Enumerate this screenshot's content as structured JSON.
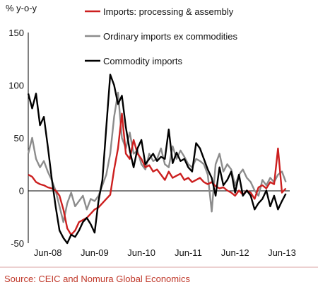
{
  "chart_data": {
    "type": "line",
    "ylabel": "% y-o-y",
    "ylim": [
      -50,
      150
    ],
    "y_ticks": [
      "150",
      "100",
      "50",
      "0",
      "-50"
    ],
    "x_ticks": [
      "Jun-08",
      "Jun-09",
      "Jun-10",
      "Jun-11",
      "Jun-12",
      "Jun-13"
    ],
    "x_start": "2008-01",
    "x_end": "2013-08",
    "grid": false,
    "legend_position": "top",
    "series": [
      {
        "name": "Imports: processing & assembly",
        "color": "#cc1f1f",
        "x": [
          "2008-01",
          "2008-02",
          "2008-03",
          "2008-04",
          "2008-05",
          "2008-06",
          "2008-07",
          "2008-08",
          "2008-09",
          "2008-10",
          "2008-11",
          "2008-12",
          "2009-01",
          "2009-02",
          "2009-03",
          "2009-04",
          "2009-05",
          "2009-06",
          "2009-07",
          "2009-08",
          "2009-09",
          "2009-10",
          "2009-11",
          "2009-12",
          "2010-01",
          "2010-02",
          "2010-03",
          "2010-04",
          "2010-05",
          "2010-06",
          "2010-07",
          "2010-08",
          "2010-09",
          "2010-10",
          "2010-11",
          "2010-12",
          "2011-01",
          "2011-02",
          "2011-03",
          "2011-04",
          "2011-05",
          "2011-06",
          "2011-07",
          "2011-08",
          "2011-09",
          "2011-10",
          "2011-11",
          "2011-12",
          "2012-01",
          "2012-02",
          "2012-03",
          "2012-04",
          "2012-05",
          "2012-06",
          "2012-07",
          "2012-08",
          "2012-09",
          "2012-10",
          "2012-11",
          "2012-12",
          "2013-01",
          "2013-02",
          "2013-03",
          "2013-04",
          "2013-05",
          "2013-06",
          "2013-07"
        ],
        "values": [
          15,
          13,
          8,
          6,
          5,
          3,
          2,
          0,
          -5,
          -18,
          -36,
          -42,
          -38,
          -30,
          -28,
          -26,
          -22,
          -18,
          -16,
          -12,
          -8,
          -4,
          20,
          40,
          73,
          35,
          30,
          48,
          35,
          30,
          22,
          24,
          18,
          20,
          15,
          10,
          18,
          12,
          14,
          16,
          10,
          12,
          8,
          10,
          12,
          8,
          6,
          8,
          4,
          2,
          3,
          0,
          -2,
          -5,
          0,
          -4,
          0,
          -2,
          -8,
          3,
          5,
          2,
          8,
          6,
          40,
          -2,
          2
        ]
      },
      {
        "name": "Ordinary imports ex commodities",
        "color": "#8c8c8c",
        "x": [
          "2008-01",
          "2008-02",
          "2008-03",
          "2008-04",
          "2008-05",
          "2008-06",
          "2008-07",
          "2008-08",
          "2008-09",
          "2008-10",
          "2008-11",
          "2008-12",
          "2009-01",
          "2009-02",
          "2009-03",
          "2009-04",
          "2009-05",
          "2009-06",
          "2009-07",
          "2009-08",
          "2009-09",
          "2009-10",
          "2009-11",
          "2009-12",
          "2010-01",
          "2010-02",
          "2010-03",
          "2010-04",
          "2010-05",
          "2010-06",
          "2010-07",
          "2010-08",
          "2010-09",
          "2010-10",
          "2010-11",
          "2010-12",
          "2011-01",
          "2011-02",
          "2011-03",
          "2011-04",
          "2011-05",
          "2011-06",
          "2011-07",
          "2011-08",
          "2011-09",
          "2011-10",
          "2011-11",
          "2011-12",
          "2012-01",
          "2012-02",
          "2012-03",
          "2012-04",
          "2012-05",
          "2012-06",
          "2012-07",
          "2012-08",
          "2012-09",
          "2012-10",
          "2012-11",
          "2012-12",
          "2013-01",
          "2013-02",
          "2013-03",
          "2013-04",
          "2013-05",
          "2013-06",
          "2013-07"
        ],
        "values": [
          35,
          50,
          30,
          22,
          28,
          18,
          10,
          0,
          -15,
          -30,
          -12,
          -2,
          -15,
          -10,
          -5,
          -18,
          -8,
          -10,
          -5,
          5,
          15,
          35,
          70,
          93,
          50,
          40,
          55,
          35,
          38,
          25,
          20,
          35,
          28,
          30,
          40,
          25,
          22,
          42,
          30,
          38,
          32,
          25,
          22,
          30,
          28,
          25,
          15,
          -20,
          25,
          35,
          18,
          25,
          20,
          5,
          15,
          20,
          12,
          8,
          0,
          -5,
          10,
          5,
          12,
          8,
          15,
          18,
          8
        ]
      },
      {
        "name": "Commodity imports",
        "color": "#000000",
        "x": [
          "2008-01",
          "2008-02",
          "2008-03",
          "2008-04",
          "2008-05",
          "2008-06",
          "2008-07",
          "2008-08",
          "2008-09",
          "2008-10",
          "2008-11",
          "2008-12",
          "2009-01",
          "2009-02",
          "2009-03",
          "2009-04",
          "2009-05",
          "2009-06",
          "2009-07",
          "2009-08",
          "2009-09",
          "2009-10",
          "2009-11",
          "2009-12",
          "2010-01",
          "2010-02",
          "2010-03",
          "2010-04",
          "2010-05",
          "2010-06",
          "2010-07",
          "2010-08",
          "2010-09",
          "2010-10",
          "2010-11",
          "2010-12",
          "2011-01",
          "2011-02",
          "2011-03",
          "2011-04",
          "2011-05",
          "2011-06",
          "2011-07",
          "2011-08",
          "2011-09",
          "2011-10",
          "2011-11",
          "2011-12",
          "2012-01",
          "2012-02",
          "2012-03",
          "2012-04",
          "2012-05",
          "2012-06",
          "2012-07",
          "2012-08",
          "2012-09",
          "2012-10",
          "2012-11",
          "2012-12",
          "2013-01",
          "2013-02",
          "2013-03",
          "2013-04",
          "2013-05",
          "2013-06",
          "2013-07"
        ],
        "values": [
          92,
          78,
          92,
          62,
          70,
          42,
          12,
          -15,
          -38,
          -45,
          -50,
          -42,
          -44,
          -38,
          -30,
          -26,
          -32,
          -40,
          -10,
          10,
          60,
          110,
          100,
          82,
          90,
          60,
          38,
          22,
          40,
          48,
          25,
          30,
          35,
          28,
          32,
          30,
          58,
          26,
          36,
          28,
          30,
          22,
          18,
          45,
          40,
          30,
          20,
          12,
          -5,
          22,
          5,
          10,
          18,
          -2,
          15,
          -5,
          0,
          -5,
          -18,
          -12,
          -8,
          0,
          -15,
          -5,
          -18,
          -10,
          -3
        ]
      }
    ]
  },
  "legend": {
    "items": [
      {
        "label": "Imports: processing & assembly",
        "color": "#cc1f1f"
      },
      {
        "label": "Ordinary imports ex commodities",
        "color": "#8c8c8c"
      },
      {
        "label": "Commodity imports",
        "color": "#000000"
      }
    ]
  },
  "source": {
    "text": "Source: CEIC and Nomura Global Economics",
    "color": "#c0392b"
  }
}
